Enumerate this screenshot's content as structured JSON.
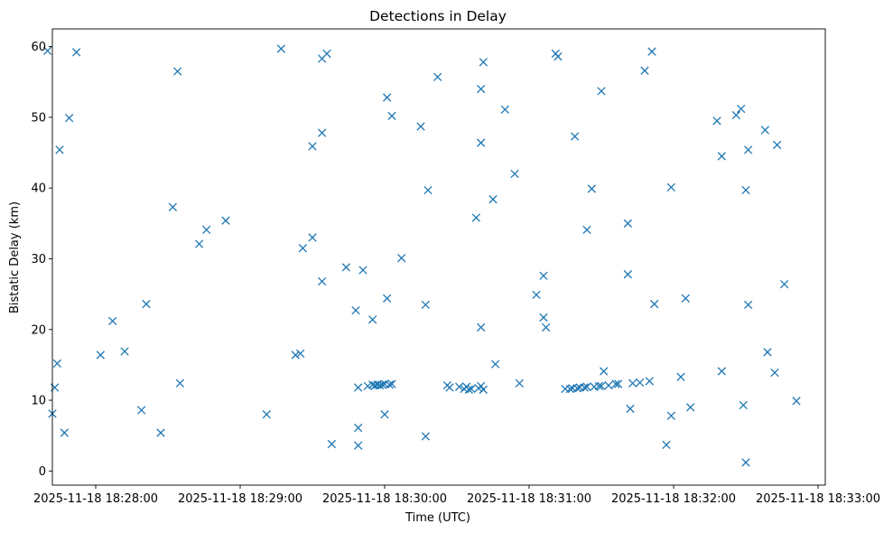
{
  "chart_data": {
    "type": "scatter",
    "title": "Detections in Delay",
    "xlabel": "Time (UTC)",
    "ylabel": "Bistatic Delay (km)",
    "x_axis_type": "datetime",
    "x_tick_values": [
      "2025-11-18 18:28:00",
      "2025-11-18 18:29:00",
      "2025-11-18 18:30:00",
      "2025-11-18 18:31:00",
      "2025-11-18 18:32:00",
      "2025-11-18 18:33:00"
    ],
    "y_ticks": [
      0,
      10,
      20,
      30,
      40,
      50,
      60
    ],
    "xlim": [
      "2025-11-18 18:27:42",
      "2025-11-18 18:33:03"
    ],
    "ylim": [
      -2,
      62.5
    ],
    "grid": false,
    "marker": "x",
    "color": "#1f77b4",
    "series": [
      {
        "points": [
          [
            "2025-11-18 18:27:40",
            59.4
          ],
          [
            "2025-11-18 18:27:42",
            8.1
          ],
          [
            "2025-11-18 18:27:43",
            11.8
          ],
          [
            "2025-11-18 18:27:44",
            15.2
          ],
          [
            "2025-11-18 18:27:45",
            45.4
          ],
          [
            "2025-11-18 18:27:47",
            5.4
          ],
          [
            "2025-11-18 18:27:49",
            49.9
          ],
          [
            "2025-11-18 18:27:52",
            59.2
          ],
          [
            "2025-11-18 18:28:02",
            16.4
          ],
          [
            "2025-11-18 18:28:07",
            21.2
          ],
          [
            "2025-11-18 18:28:12",
            16.9
          ],
          [
            "2025-11-18 18:28:19",
            8.6
          ],
          [
            "2025-11-18 18:28:21",
            23.6
          ],
          [
            "2025-11-18 18:28:27",
            5.4
          ],
          [
            "2025-11-18 18:28:32",
            37.3
          ],
          [
            "2025-11-18 18:28:34",
            56.5
          ],
          [
            "2025-11-18 18:28:35",
            12.4
          ],
          [
            "2025-11-18 18:28:43",
            32.1
          ],
          [
            "2025-11-18 18:28:46",
            34.1
          ],
          [
            "2025-11-18 18:28:54",
            35.4
          ],
          [
            "2025-11-18 18:29:11",
            8.0
          ],
          [
            "2025-11-18 18:29:17",
            59.7
          ],
          [
            "2025-11-18 18:29:23",
            16.4
          ],
          [
            "2025-11-18 18:29:25",
            16.6
          ],
          [
            "2025-11-18 18:29:26",
            31.5
          ],
          [
            "2025-11-18 18:29:30",
            45.9
          ],
          [
            "2025-11-18 18:29:30",
            33.0
          ],
          [
            "2025-11-18 18:29:34",
            58.3
          ],
          [
            "2025-11-18 18:29:34",
            47.8
          ],
          [
            "2025-11-18 18:29:34",
            26.8
          ],
          [
            "2025-11-18 18:29:36",
            59.0
          ],
          [
            "2025-11-18 18:29:38",
            3.8
          ],
          [
            "2025-11-18 18:29:44",
            28.8
          ],
          [
            "2025-11-18 18:29:48",
            22.7
          ],
          [
            "2025-11-18 18:29:49",
            11.8
          ],
          [
            "2025-11-18 18:29:49",
            6.1
          ],
          [
            "2025-11-18 18:29:49",
            3.6
          ],
          [
            "2025-11-18 18:29:51",
            28.4
          ],
          [
            "2025-11-18 18:29:53",
            12.0
          ],
          [
            "2025-11-18 18:29:55",
            12.2
          ],
          [
            "2025-11-18 18:29:55",
            21.4
          ],
          [
            "2025-11-18 18:29:56",
            12.1
          ],
          [
            "2025-11-18 18:29:57",
            12.2
          ],
          [
            "2025-11-18 18:29:58",
            12.1
          ],
          [
            "2025-11-18 18:29:59",
            12.2
          ],
          [
            "2025-11-18 18:30:00",
            8.0
          ],
          [
            "2025-11-18 18:30:00",
            12.3
          ],
          [
            "2025-11-18 18:30:01",
            52.8
          ],
          [
            "2025-11-18 18:30:01",
            24.4
          ],
          [
            "2025-11-18 18:30:02",
            12.2
          ],
          [
            "2025-11-18 18:30:03",
            50.2
          ],
          [
            "2025-11-18 18:30:03",
            12.3
          ],
          [
            "2025-11-18 18:30:07",
            30.1
          ],
          [
            "2025-11-18 18:30:15",
            48.7
          ],
          [
            "2025-11-18 18:30:17",
            4.9
          ],
          [
            "2025-11-18 18:30:17",
            23.5
          ],
          [
            "2025-11-18 18:30:18",
            39.7
          ],
          [
            "2025-11-18 18:30:22",
            55.7
          ],
          [
            "2025-11-18 18:30:26",
            12.1
          ],
          [
            "2025-11-18 18:30:27",
            11.8
          ],
          [
            "2025-11-18 18:30:31",
            11.9
          ],
          [
            "2025-11-18 18:30:33",
            11.6
          ],
          [
            "2025-11-18 18:30:34",
            11.9
          ],
          [
            "2025-11-18 18:30:35",
            11.5
          ],
          [
            "2025-11-18 18:30:36",
            11.6
          ],
          [
            "2025-11-18 18:30:38",
            35.8
          ],
          [
            "2025-11-18 18:30:39",
            11.7
          ],
          [
            "2025-11-18 18:30:40",
            12.0
          ],
          [
            "2025-11-18 18:30:40",
            54.0
          ],
          [
            "2025-11-18 18:30:40",
            46.4
          ],
          [
            "2025-11-18 18:30:40",
            20.3
          ],
          [
            "2025-11-18 18:30:41",
            11.5
          ],
          [
            "2025-11-18 18:30:41",
            57.8
          ],
          [
            "2025-11-18 18:30:45",
            38.4
          ],
          [
            "2025-11-18 18:30:46",
            15.1
          ],
          [
            "2025-11-18 18:30:50",
            51.1
          ],
          [
            "2025-11-18 18:30:54",
            42.0
          ],
          [
            "2025-11-18 18:30:56",
            12.4
          ],
          [
            "2025-11-18 18:31:03",
            24.9
          ],
          [
            "2025-11-18 18:31:06",
            27.6
          ],
          [
            "2025-11-18 18:31:06",
            21.7
          ],
          [
            "2025-11-18 18:31:07",
            20.3
          ],
          [
            "2025-11-18 18:31:11",
            59.0
          ],
          [
            "2025-11-18 18:31:12",
            58.6
          ],
          [
            "2025-11-18 18:31:15",
            11.6
          ],
          [
            "2025-11-18 18:31:17",
            11.6
          ],
          [
            "2025-11-18 18:31:18",
            11.7
          ],
          [
            "2025-11-18 18:31:19",
            47.3
          ],
          [
            "2025-11-18 18:31:20",
            11.7
          ],
          [
            "2025-11-18 18:31:21",
            11.8
          ],
          [
            "2025-11-18 18:31:23",
            11.8
          ],
          [
            "2025-11-18 18:31:24",
            11.9
          ],
          [
            "2025-11-18 18:31:24",
            34.1
          ],
          [
            "2025-11-18 18:31:26",
            39.9
          ],
          [
            "2025-11-18 18:31:27",
            11.9
          ],
          [
            "2025-11-18 18:31:29",
            12.0
          ],
          [
            "2025-11-18 18:31:30",
            12.0
          ],
          [
            "2025-11-18 18:31:30",
            53.7
          ],
          [
            "2025-11-18 18:31:31",
            14.1
          ],
          [
            "2025-11-18 18:31:33",
            12.1
          ],
          [
            "2025-11-18 18:31:36",
            12.3
          ],
          [
            "2025-11-18 18:31:37",
            12.3
          ],
          [
            "2025-11-18 18:31:41",
            35.0
          ],
          [
            "2025-11-18 18:31:41",
            27.8
          ],
          [
            "2025-11-18 18:31:42",
            8.8
          ],
          [
            "2025-11-18 18:31:43",
            12.4
          ],
          [
            "2025-11-18 18:31:46",
            12.5
          ],
          [
            "2025-11-18 18:31:48",
            56.6
          ],
          [
            "2025-11-18 18:31:50",
            12.7
          ],
          [
            "2025-11-18 18:31:51",
            59.3
          ],
          [
            "2025-11-18 18:31:52",
            23.6
          ],
          [
            "2025-11-18 18:31:57",
            3.7
          ],
          [
            "2025-11-18 18:31:59",
            40.1
          ],
          [
            "2025-11-18 18:31:59",
            7.8
          ],
          [
            "2025-11-18 18:32:03",
            13.3
          ],
          [
            "2025-11-18 18:32:05",
            24.4
          ],
          [
            "2025-11-18 18:32:07",
            9.0
          ],
          [
            "2025-11-18 18:32:18",
            49.5
          ],
          [
            "2025-11-18 18:32:20",
            44.5
          ],
          [
            "2025-11-18 18:32:20",
            14.1
          ],
          [
            "2025-11-18 18:32:26",
            50.3
          ],
          [
            "2025-11-18 18:32:28",
            51.2
          ],
          [
            "2025-11-18 18:32:29",
            9.3
          ],
          [
            "2025-11-18 18:32:30",
            1.2
          ],
          [
            "2025-11-18 18:32:30",
            39.7
          ],
          [
            "2025-11-18 18:32:31",
            23.5
          ],
          [
            "2025-11-18 18:32:31",
            45.4
          ],
          [
            "2025-11-18 18:32:38",
            48.2
          ],
          [
            "2025-11-18 18:32:39",
            16.8
          ],
          [
            "2025-11-18 18:32:42",
            13.9
          ],
          [
            "2025-11-18 18:32:43",
            46.1
          ],
          [
            "2025-11-18 18:32:46",
            26.4
          ],
          [
            "2025-11-18 18:32:51",
            9.9
          ]
        ]
      }
    ]
  }
}
